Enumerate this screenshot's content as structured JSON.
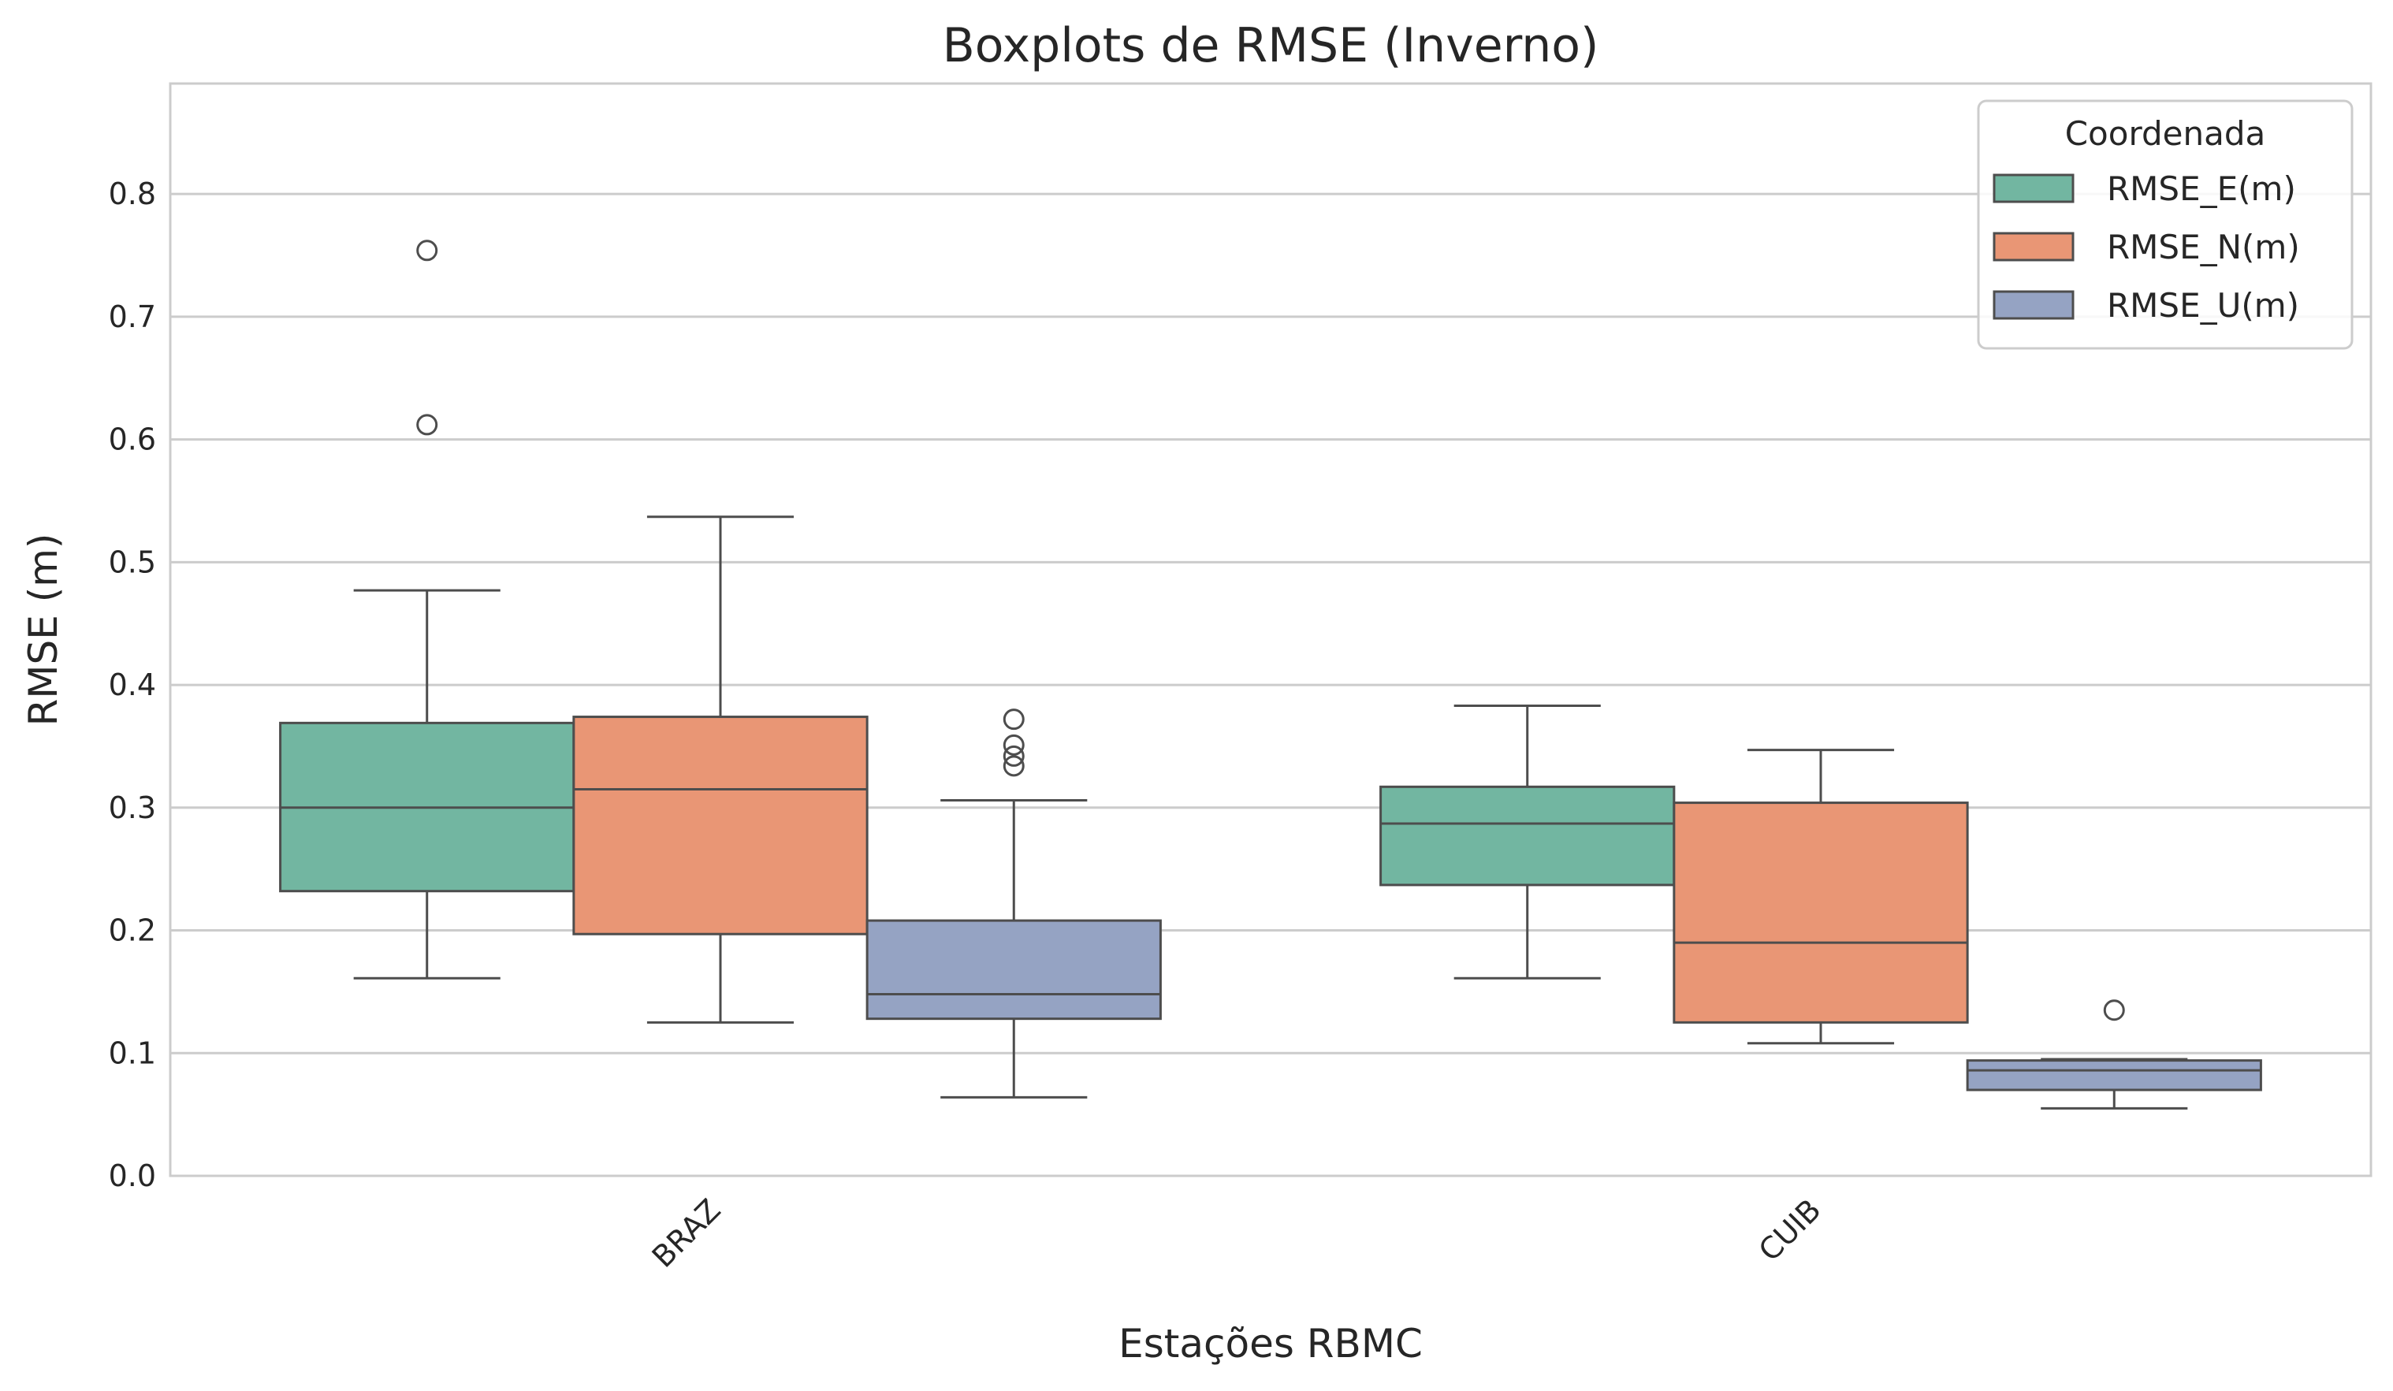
{
  "chart_data": {
    "type": "boxplot",
    "title": "Boxplots de RMSE (Inverno)",
    "xlabel": "Estações RBMC",
    "ylabel": "RMSE (m)",
    "ylim": [
      0,
      0.89
    ],
    "yticks": [
      "0.0",
      "0.1",
      "0.2",
      "0.3",
      "0.4",
      "0.5",
      "0.6",
      "0.7",
      "0.8"
    ],
    "categories": [
      "BRAZ",
      "CUIB"
    ],
    "grid": true,
    "legend": {
      "title": "Coordenada",
      "position": "top-right"
    },
    "series": [
      {
        "name": "RMSE_E(m)",
        "color": "#72b6a1",
        "boxes": [
          {
            "category": "BRAZ",
            "whisker_low": 0.161,
            "q1": 0.232,
            "median": 0.3,
            "q3": 0.369,
            "whisker_high": 0.477,
            "outliers": [
              0.612,
              0.754
            ]
          },
          {
            "category": "CUIB",
            "whisker_low": 0.161,
            "q1": 0.237,
            "median": 0.287,
            "q3": 0.317,
            "whisker_high": 0.383,
            "outliers": []
          }
        ]
      },
      {
        "name": "RMSE_N(m)",
        "color": "#e99675",
        "boxes": [
          {
            "category": "BRAZ",
            "whisker_low": 0.125,
            "q1": 0.197,
            "median": 0.315,
            "q3": 0.374,
            "whisker_high": 0.537,
            "outliers": []
          },
          {
            "category": "CUIB",
            "whisker_low": 0.108,
            "q1": 0.125,
            "median": 0.19,
            "q3": 0.304,
            "whisker_high": 0.347,
            "outliers": []
          }
        ]
      },
      {
        "name": "RMSE_U(m)",
        "color": "#95a3c3",
        "boxes": [
          {
            "category": "BRAZ",
            "whisker_low": 0.064,
            "q1": 0.128,
            "median": 0.148,
            "q3": 0.208,
            "whisker_high": 0.306,
            "outliers": [
              0.334,
              0.342,
              0.351,
              0.372
            ]
          },
          {
            "category": "CUIB",
            "whisker_low": 0.055,
            "q1": 0.07,
            "median": 0.086,
            "q3": 0.094,
            "whisker_high": 0.095,
            "outliers": [
              0.135
            ]
          }
        ]
      }
    ]
  }
}
